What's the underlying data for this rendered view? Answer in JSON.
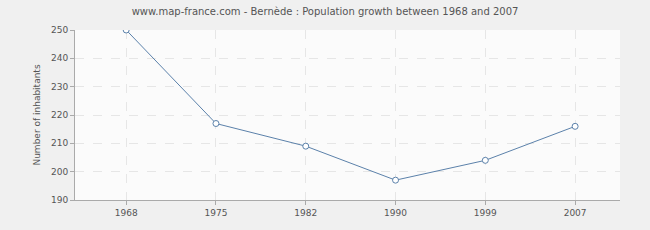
{
  "chart_data": {
    "type": "line",
    "title": "www.map-france.com - Bernède : Population growth between 1968 and 2007",
    "y_label": "Number of inhabitants",
    "categories": [
      "1968",
      "1975",
      "1982",
      "1990",
      "1999",
      "2007"
    ],
    "values": [
      250,
      217,
      209,
      197,
      204,
      216
    ],
    "color": "#5b81aa",
    "marker": "circle",
    "ylim": [
      190,
      250
    ],
    "yticks": [
      190,
      200,
      210,
      220,
      230,
      240,
      250
    ],
    "grid": true
  }
}
